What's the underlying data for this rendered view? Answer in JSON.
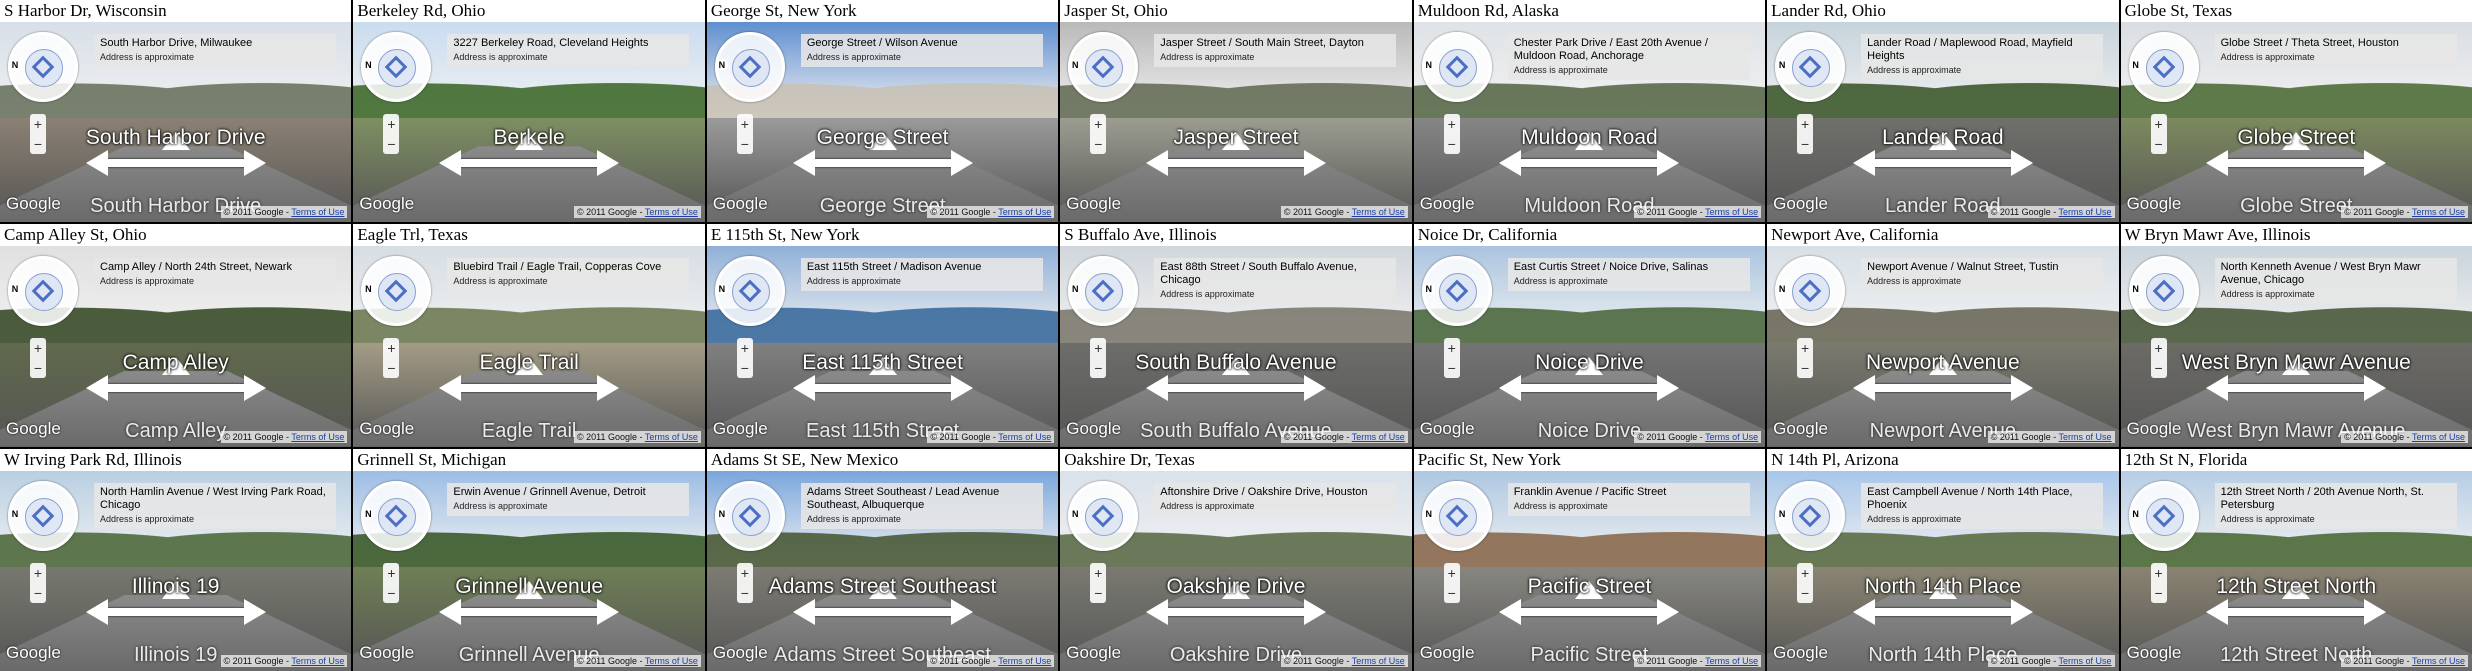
{
  "panels": [
    {
      "title": "S Harbor Dr, Wisconsin",
      "address": "South Harbor Drive, Milwaukee",
      "approx": "Address is approximate",
      "street": "South Harbor Drive",
      "street2": "South Harbor Drive",
      "sky": "#d7dfe8",
      "ground": "#8b8174",
      "trees": "#6b7560"
    },
    {
      "title": "Berkeley Rd, Ohio",
      "address": "3227 Berkeley Road, Cleveland Heights",
      "approx": "Address is approximate",
      "street": "Berkele",
      "street2": "",
      "sky": "#c9dcef",
      "ground": "#7e8f62",
      "trees": "#3f6b2c"
    },
    {
      "title": "George St, New York",
      "address": "George Street / Wilson Avenue",
      "approx": "Address is approximate",
      "street": "George Street",
      "street2": "George Street",
      "sky": "#5f8fd0",
      "ground": "#9a9a9a",
      "trees": "#c9c2b6"
    },
    {
      "title": "Jasper St, Ohio",
      "address": "Jasper Street / South Main Street, Dayton",
      "approx": "Address is approximate",
      "street": "Jasper Street",
      "street2": "",
      "sky": "#b9b9b9",
      "ground": "#9c9d91",
      "trees": "#666e58"
    },
    {
      "title": "Muldoon Rd, Alaska",
      "address": "Chester Park Drive / East 20th Avenue / Muldoon Road, Anchorage",
      "approx": "Address is approximate",
      "street": "Muldoon Road",
      "street2": "Muldoon Road",
      "sky": "#dfe3e7",
      "ground": "#868686",
      "trees": "#5a6b4a"
    },
    {
      "title": "Lander Rd, Ohio",
      "address": "Lander Road / Maplewood Road, Mayfield Heights",
      "approx": "Address is approximate",
      "street": "Lander Road",
      "street2": "Lander Road",
      "sky": "#c6d3dc",
      "ground": "#6f6f6b",
      "trees": "#3e5a2e"
    },
    {
      "title": "Globe St, Texas",
      "address": "Globe Street / Theta Street, Houston",
      "approx": "Address is approximate",
      "street": "Globe Street",
      "street2": "Globe Street",
      "sky": "#d9dde2",
      "ground": "#7c8a5e",
      "trees": "#4f6e39"
    },
    {
      "title": "Camp Alley St, Ohio",
      "address": "Camp Alley / North 24th Street, Newark",
      "approx": "Address is approximate",
      "street": "Camp Alley",
      "street2": "Camp Alley",
      "sky": "#e0e0e0",
      "ground": "#606a4c",
      "trees": "#3a4d2a"
    },
    {
      "title": "Eagle Trl, Texas",
      "address": "Bluebird Trail / Eagle Trail, Copperas Cove",
      "approx": "Address is approximate",
      "street": "Eagle Trail",
      "street2": "Eagle Trail",
      "sky": "#d6dde3",
      "ground": "#a39c86",
      "trees": "#6f7c55"
    },
    {
      "title": "E 115th St, New York",
      "address": "East 115th Street / Madison Avenue",
      "approx": "Address is approximate",
      "street": "East 115th Street",
      "street2": "East 115th Street",
      "sky": "#8fb0d8",
      "ground": "#808080",
      "trees": "#3c6c9e"
    },
    {
      "title": "S Buffalo Ave, Illinois",
      "address": "East 88th Street / South Buffalo Avenue, Chicago",
      "approx": "Address is approximate",
      "street": "South Buffalo Avenue",
      "street2": "South Buffalo Avenue",
      "sky": "#d0d6dc",
      "ground": "#6d6d6a",
      "trees": "#7d7a70"
    },
    {
      "title": "Noice Dr, California",
      "address": "East Curtis Street / Noice Drive, Salinas",
      "approx": "Address is approximate",
      "street": "Noice Drive",
      "street2": "Noice Drive",
      "sky": "#a9c4df",
      "ground": "#747474",
      "trees": "#4d6940"
    },
    {
      "title": "Newport Ave, California",
      "address": "Newport Avenue / Walnut Street, Tustin",
      "approx": "Address is approximate",
      "street": "Newport Avenue",
      "street2": "Newport Avenue",
      "sky": "#d7e0e7",
      "ground": "#7a7a6e",
      "trees": "#6c6a5a"
    },
    {
      "title": "W Bryn Mawr Ave, Illinois",
      "address": "North Kenneth Avenue / West Bryn Mawr Avenue, Chicago",
      "approx": "Address is approximate",
      "street": "West Bryn Mawr Avenue",
      "street2": "West Bryn Mawr Avenue",
      "sky": "#c9d4dc",
      "ground": "#6c6b66",
      "trees": "#4a5a3c"
    },
    {
      "title": "W Irving Park Rd, Illinois",
      "address": "North Hamlin Avenue / West Irving Park Road, Chicago",
      "approx": "Address is approximate",
      "street": "Illinois 19",
      "street2": "Illinois 19",
      "sky": "#b8cfe3",
      "ground": "#77796f",
      "trees": "#4f6a3d"
    },
    {
      "title": "Grinnell St, Michigan",
      "address": "Erwin Avenue / Grinnell Avenue, Detroit",
      "approx": "Address is approximate",
      "street": "Grinnell Avenue",
      "street2": "Grinnell Avenue",
      "sky": "#9cbde4",
      "ground": "#6f7f55",
      "trees": "#3b5b2a"
    },
    {
      "title": "Adams St SE, New Mexico",
      "address": "Adams Street Southeast / Lead Avenue Southeast, Albuquerque",
      "approx": "Address is approximate",
      "street": "Adams Street Southeast",
      "street2": "Adams Street Southeast",
      "sky": "#7aa6dc",
      "ground": "#7d7b73",
      "trees": "#4a5b38"
    },
    {
      "title": "Oakshire Dr, Texas",
      "address": "Aftonshire Drive / Oakshire Drive, Houston",
      "approx": "Address is approximate",
      "street": "Oakshire Drive",
      "street2": "Oakshire Drive",
      "sky": "#d9e1ea",
      "ground": "#7a7a72",
      "trees": "#5d6d4a"
    },
    {
      "title": "Pacific St, New York",
      "address": "Franklin Avenue / Pacific Street",
      "approx": "Address is approximate",
      "street": "Pacific Street",
      "street2": "Pacific Street",
      "sky": "#aec7e2",
      "ground": "#878680",
      "trees": "#8a6a4e"
    },
    {
      "title": "N 14th Pl, Arizona",
      "address": "East Campbell Avenue / North 14th Place, Phoenix",
      "approx": "Address is approximate",
      "street": "North 14th Place",
      "street2": "North 14th Place",
      "sky": "#a8c6ea",
      "ground": "#8a8573",
      "trees": "#5b6d45"
    },
    {
      "title": "12th St N, Florida",
      "address": "12th Street North / 20th Avenue North, St. Petersburg",
      "approx": "Address is approximate",
      "street": "12th Street North",
      "street2": "12th Street North",
      "sky": "#b7cde4",
      "ground": "#8a8372",
      "trees": "#4d6a38"
    }
  ],
  "google_label": "Google",
  "copyright": "© 2011 Google -",
  "terms": "Terms of Use",
  "plus": "+",
  "minus": "−",
  "north": "N"
}
